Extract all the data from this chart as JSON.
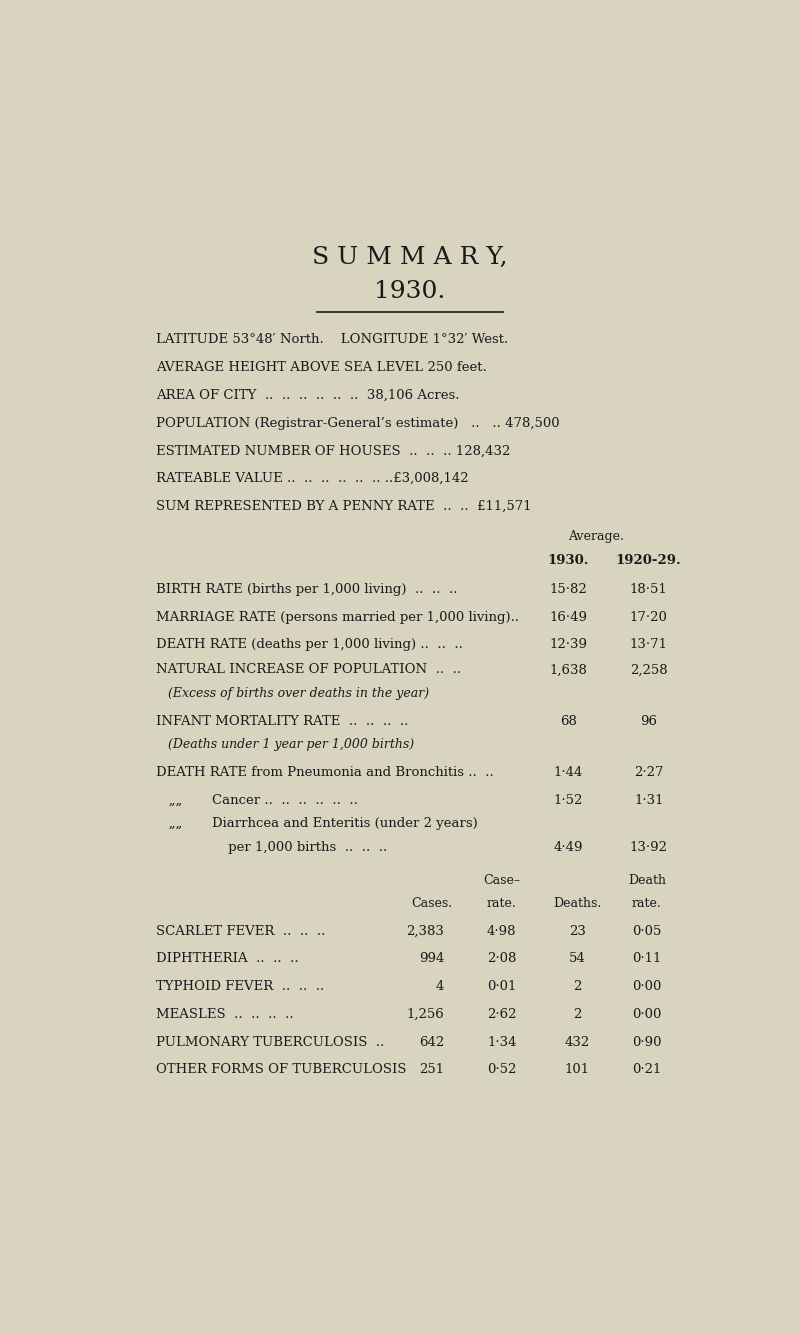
{
  "bg_color": "#d8d4c0",
  "text_color": "#1a1a1a",
  "title1": "S U M M A R Y,",
  "title2": "1930.",
  "diseases": [
    {
      "name": "SCARLET FEVER  ..  ..  ..",
      "cases": "2,383",
      "case_rate": "4·98",
      "deaths": "23",
      "death_rate": "0·05"
    },
    {
      "name": "DIPHTHERIA  ..  ..  ..",
      "cases": "994",
      "case_rate": "2·08",
      "deaths": "54",
      "death_rate": "0·11"
    },
    {
      "name": "TYPHOID FEVER  ..  ..  ..",
      "cases": "4",
      "case_rate": "0·01",
      "deaths": "2",
      "death_rate": "0·00"
    },
    {
      "name": "MEASLES  ..  ..  ..  ..",
      "cases": "1,256",
      "case_rate": "2·62",
      "deaths": "2",
      "death_rate": "0·00"
    },
    {
      "name": "PULMONARY TUBERCULOSIS  ..",
      "cases": "642",
      "case_rate": "1·34",
      "deaths": "432",
      "death_rate": "0·90"
    },
    {
      "name": "OTHER FORMS OF TUBERCULOSIS",
      "cases": "251",
      "case_rate": "0·52",
      "deaths": "101",
      "death_rate": "0·21"
    }
  ]
}
